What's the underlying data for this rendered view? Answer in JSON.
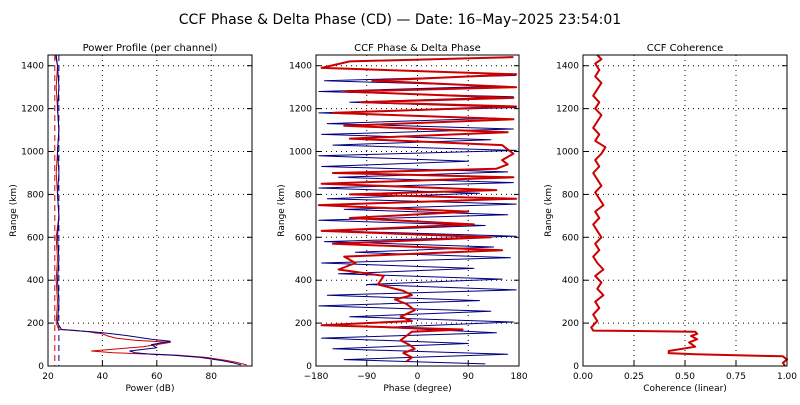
{
  "figure": {
    "title": "CCF Phase & Delta Phase (CD) — Date: 16–May–2025 23:54:01"
  },
  "colors": {
    "background": "#ffffff",
    "axis": "#000000",
    "channel_a": "#cc0000",
    "channel_b": "#000080",
    "phase": "#000080",
    "delta_phase": "#ff0000",
    "coherence": "#ff0000",
    "grid": "#000000"
  },
  "chart_data": [
    {
      "id": "power",
      "type": "line",
      "title": "Power Profile (per channel)",
      "xlabel": "Power (dB)",
      "ylabel": "Range (km)",
      "xlim": [
        20,
        95
      ],
      "ylim": [
        0,
        1450
      ],
      "xticks": [
        20,
        40,
        60,
        80
      ],
      "yticks": [
        0,
        200,
        400,
        600,
        800,
        1000,
        1200,
        1400
      ],
      "grid": "dotted",
      "reference_lines": [
        22.5,
        24
      ],
      "series": [
        {
          "color": "red",
          "x": [
            93,
            90,
            86,
            78,
            68,
            60,
            52,
            44,
            36,
            55,
            65,
            52,
            45,
            42,
            40,
            37,
            35,
            32,
            30,
            28,
            24,
            23,
            23.5,
            23,
            23.5,
            23,
            24,
            23.5,
            23,
            23.5,
            24,
            23.5,
            23,
            23.5,
            23,
            22.5
          ],
          "y": [
            5,
            15,
            25,
            40,
            50,
            55,
            58,
            62,
            70,
            90,
            110,
            120,
            130,
            140,
            150,
            155,
            160,
            163,
            166,
            168,
            170,
            200,
            300,
            400,
            500,
            600,
            700,
            800,
            900,
            1000,
            1100,
            1200,
            1300,
            1400,
            1430,
            1450
          ]
        },
        {
          "color": "navy",
          "x": [
            91,
            88,
            84,
            76,
            66,
            58,
            52,
            50,
            60,
            58,
            65,
            58,
            50,
            45,
            40,
            36,
            30,
            25,
            23.5,
            24,
            23.5,
            24,
            23.5,
            24,
            23.5,
            24,
            23.5,
            24,
            23.5,
            24,
            23.5,
            23
          ],
          "y": [
            5,
            15,
            25,
            40,
            50,
            55,
            62,
            70,
            85,
            100,
            115,
            125,
            140,
            148,
            155,
            160,
            165,
            170,
            200,
            300,
            400,
            500,
            600,
            700,
            800,
            900,
            1000,
            1100,
            1200,
            1300,
            1400,
            1450
          ]
        }
      ]
    },
    {
      "id": "phase",
      "type": "line",
      "title": "CCF Phase & Delta Phase",
      "xlabel": "Phase (degree)",
      "ylabel": "Range (km)",
      "xlim": [
        -180,
        180
      ],
      "ylim": [
        0,
        1450
      ],
      "xticks": [
        -180,
        -90,
        0,
        90,
        180
      ],
      "yticks": [
        0,
        200,
        400,
        600,
        800,
        1000,
        1200,
        1400
      ],
      "grid": "dotted",
      "series": [
        {
          "name": "",
          "color": "navy",
          "x": [
            120,
            -130,
            160,
            -150,
            90,
            -170,
            140,
            -60,
            170,
            -120,
            130,
            -175,
            110,
            -160,
            175,
            -90,
            150,
            -140,
            100,
            -170,
            165,
            -110,
            135,
            -165,
            175,
            -150,
            120,
            -175,
            160,
            -130,
            175,
            -160,
            110,
            -175,
            170,
            -140,
            160,
            -170,
            90,
            -175,
            175,
            -150,
            130,
            -170,
            170,
            -160,
            140,
            -175,
            175,
            -120,
            170,
            -175,
            150,
            -165,
            175
          ],
          "y": [
            10,
            30,
            55,
            80,
            105,
            130,
            155,
            180,
            205,
            230,
            255,
            280,
            305,
            330,
            355,
            380,
            405,
            430,
            455,
            480,
            505,
            530,
            555,
            580,
            605,
            630,
            655,
            680,
            705,
            730,
            755,
            780,
            805,
            830,
            855,
            880,
            905,
            930,
            955,
            980,
            1005,
            1030,
            1055,
            1080,
            1105,
            1130,
            1155,
            1180,
            1205,
            1230,
            1255,
            1280,
            1305,
            1330,
            1355
          ]
        },
        {
          "name": "",
          "color": "red",
          "x": [
            -20,
            -10,
            -25,
            -5,
            -15,
            -30,
            -20,
            -10,
            80,
            -170,
            -10,
            -30,
            -5,
            -20,
            -40,
            -10,
            -25,
            -70,
            -60,
            -140,
            -110,
            -130,
            150,
            -150,
            130,
            -170,
            100,
            -120,
            90,
            -175,
            175,
            -120,
            140,
            -170,
            170,
            -150,
            140,
            160,
            150,
            170,
            160,
            150,
            -120,
            160,
            -130,
            170,
            -150,
            175,
            -100,
            170,
            -130,
            175,
            -80,
            175,
            -170,
            -120,
            170
          ],
          "y": [
            20,
            40,
            60,
            80,
            100,
            120,
            140,
            160,
            170,
            190,
            210,
            230,
            260,
            290,
            310,
            330,
            350,
            380,
            420,
            450,
            480,
            510,
            540,
            570,
            600,
            630,
            660,
            690,
            720,
            750,
            780,
            800,
            820,
            850,
            880,
            900,
            920,
            940,
            960,
            990,
            1010,
            1030,
            1060,
            1090,
            1120,
            1150,
            1180,
            1210,
            1230,
            1250,
            1280,
            1300,
            1330,
            1360,
            1390,
            1420,
            1440
          ]
        }
      ]
    },
    {
      "id": "coherence",
      "type": "line",
      "title": "CCF Coherence",
      "xlabel": "Coherence (linear)",
      "ylabel": "Range (km)",
      "xlim": [
        0,
        1
      ],
      "ylim": [
        0,
        1450
      ],
      "xticks": [
        "0.00",
        "0.25",
        "0.50",
        "0.75",
        "1.00"
      ],
      "yticks": [
        0,
        200,
        400,
        600,
        800,
        1000,
        1200,
        1400
      ],
      "grid": "dotted",
      "series": [
        {
          "color": "red",
          "x": [
            0.99,
            0.98,
            1.0,
            0.98,
            0.75,
            0.55,
            0.42,
            0.42,
            0.55,
            0.52,
            0.56,
            0.53,
            0.56,
            0.55,
            0.05,
            0.04,
            0.07,
            0.05,
            0.08,
            0.06,
            0.1,
            0.07,
            0.09,
            0.06,
            0.1,
            0.07,
            0.05,
            0.08,
            0.06,
            0.09,
            0.07,
            0.05,
            0.08,
            0.06,
            0.1,
            0.08,
            0.06,
            0.09,
            0.07,
            0.05,
            0.08,
            0.06,
            0.09,
            0.11,
            0.06,
            0.08,
            0.05,
            0.07,
            0.09,
            0.06,
            0.08,
            0.05,
            0.07,
            0.09,
            0.06,
            0.08,
            0.06,
            0.09,
            0.07
          ],
          "y": [
            0,
            15,
            30,
            45,
            50,
            55,
            60,
            70,
            90,
            110,
            125,
            140,
            150,
            160,
            165,
            180,
            210,
            240,
            270,
            300,
            330,
            360,
            390,
            420,
            450,
            480,
            510,
            540,
            570,
            600,
            630,
            660,
            690,
            720,
            750,
            780,
            810,
            840,
            870,
            900,
            930,
            960,
            990,
            1020,
            1050,
            1080,
            1110,
            1140,
            1170,
            1200,
            1230,
            1260,
            1290,
            1320,
            1350,
            1380,
            1410,
            1430,
            1450
          ]
        }
      ]
    }
  ]
}
